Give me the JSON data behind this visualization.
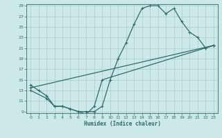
{
  "xlabel": "Humidex (Indice chaleur)",
  "bg_color": "#cde8e8",
  "grid_color": "#aacccc",
  "line_color": "#2d6b6b",
  "ylim": [
    9,
    29
  ],
  "xlim": [
    -0.5,
    23.5
  ],
  "yticks": [
    9,
    11,
    13,
    15,
    17,
    19,
    21,
    23,
    25,
    27,
    29
  ],
  "xticks": [
    0,
    1,
    2,
    3,
    4,
    5,
    6,
    7,
    8,
    9,
    10,
    11,
    12,
    13,
    14,
    15,
    16,
    17,
    18,
    19,
    20,
    21,
    22,
    23
  ],
  "line1_x": [
    0,
    1,
    2,
    3,
    4,
    5,
    6,
    7,
    8,
    9,
    10,
    11,
    12,
    13,
    14,
    15,
    16,
    17,
    18,
    19,
    20,
    21,
    22,
    23
  ],
  "line1_y": [
    14,
    13,
    12,
    10,
    10,
    9.5,
    9,
    9,
    9,
    10,
    15,
    19,
    22,
    25.5,
    28.5,
    29,
    29,
    27.5,
    28.5,
    26,
    24,
    23,
    21,
    21.5
  ],
  "line2_x": [
    0,
    2,
    3,
    4,
    5,
    6,
    7,
    8,
    9,
    23
  ],
  "line2_y": [
    13,
    11.5,
    10,
    10,
    9.5,
    9,
    8.5,
    10,
    15,
    21.5
  ],
  "line3_x": [
    0,
    23
  ],
  "line3_y": [
    13.5,
    21.5
  ]
}
